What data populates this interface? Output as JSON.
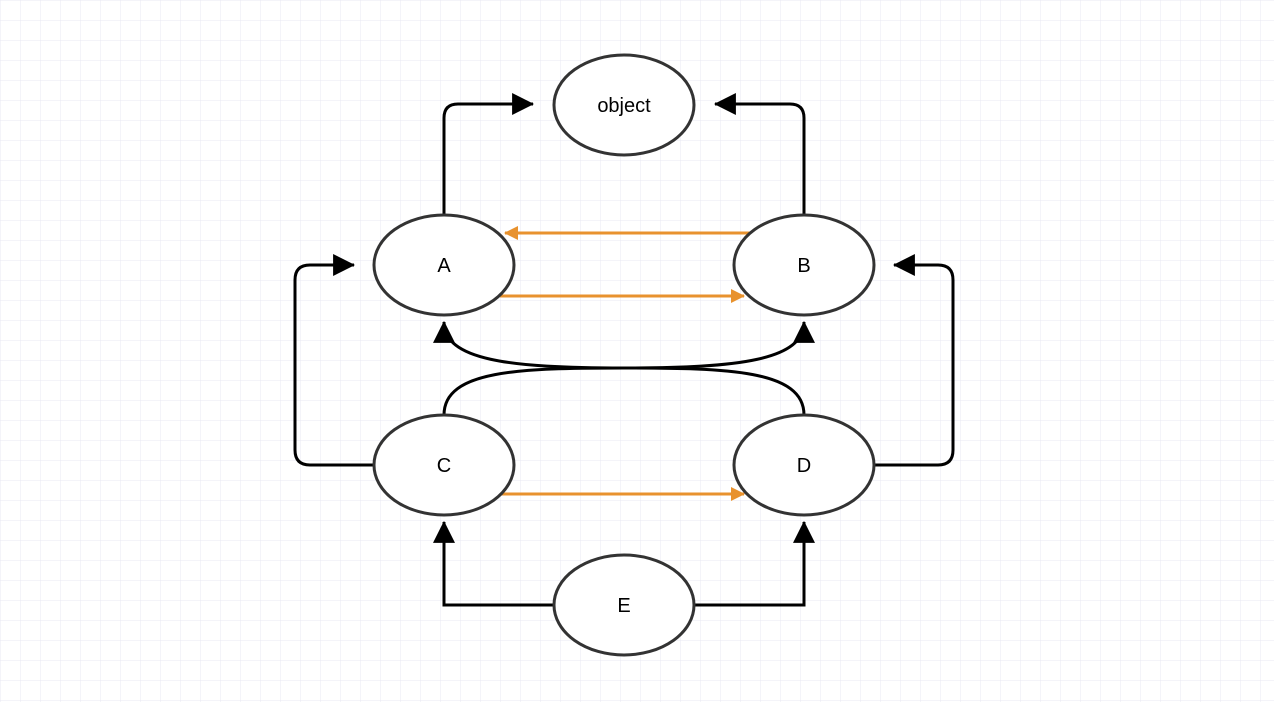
{
  "diagram": {
    "colors": {
      "background": "#ffffff",
      "grid": "#e8e8f3",
      "node_fill": "#ffffff",
      "node_stroke": "#333333",
      "edge_black": "#000000",
      "edge_orange": "#e8922e"
    },
    "nodes": {
      "object": {
        "label": "object"
      },
      "a": {
        "label": "A"
      },
      "b": {
        "label": "B"
      },
      "c": {
        "label": "C"
      },
      "d": {
        "label": "D"
      },
      "e": {
        "label": "E"
      }
    },
    "edges": [
      {
        "from": "A",
        "to": "object",
        "color": "black"
      },
      {
        "from": "B",
        "to": "object",
        "color": "black"
      },
      {
        "from": "B",
        "to": "A",
        "color": "orange"
      },
      {
        "from": "A",
        "to": "B",
        "color": "orange"
      },
      {
        "from": "C",
        "to": "A",
        "color": "black"
      },
      {
        "from": "D",
        "to": "B",
        "color": "black"
      },
      {
        "from": "C",
        "to": "B",
        "color": "black"
      },
      {
        "from": "D",
        "to": "A",
        "color": "black"
      },
      {
        "from": "C",
        "to": "D",
        "color": "orange"
      },
      {
        "from": "E",
        "to": "C",
        "color": "black"
      },
      {
        "from": "E",
        "to": "D",
        "color": "black"
      }
    ]
  }
}
